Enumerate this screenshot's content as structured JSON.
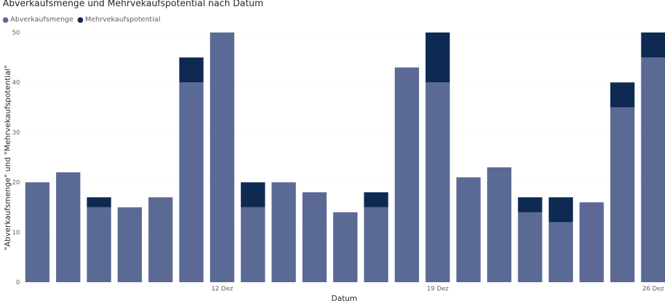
{
  "chart_data": {
    "type": "bar",
    "stacked": true,
    "title": "Abverkaufsmenge und Mehrvekaufspotential nach Datum",
    "xlabel": "Datum",
    "ylabel": "\"Abverkaufsmenge\" und \"Mehrvekaufspotential\"",
    "ylim": [
      0,
      50
    ],
    "yticks": [
      0,
      10,
      20,
      30,
      40,
      50
    ],
    "grid": true,
    "legend_position": "top-left",
    "categories": [
      "",
      "",
      "",
      "",
      "",
      "",
      "12 Dez",
      "",
      "",
      "",
      "",
      "",
      "",
      "19 Dez",
      "",
      "",
      "",
      "",
      "",
      "",
      "26 Dez"
    ],
    "series": [
      {
        "name": "Abverkaufsmenge",
        "color": "#5B6A95",
        "values": [
          20,
          22,
          15,
          15,
          17,
          40,
          50,
          15,
          20,
          18,
          14,
          15,
          43,
          40,
          21,
          23,
          14,
          12,
          16,
          35,
          45
        ]
      },
      {
        "name": "Mehrvekaufspotential",
        "color": "#0F2A52",
        "values": [
          0,
          0,
          2,
          0,
          0,
          5,
          0,
          5,
          0,
          0,
          0,
          3,
          0,
          10,
          0,
          0,
          3,
          5,
          0,
          5,
          5
        ]
      }
    ]
  }
}
